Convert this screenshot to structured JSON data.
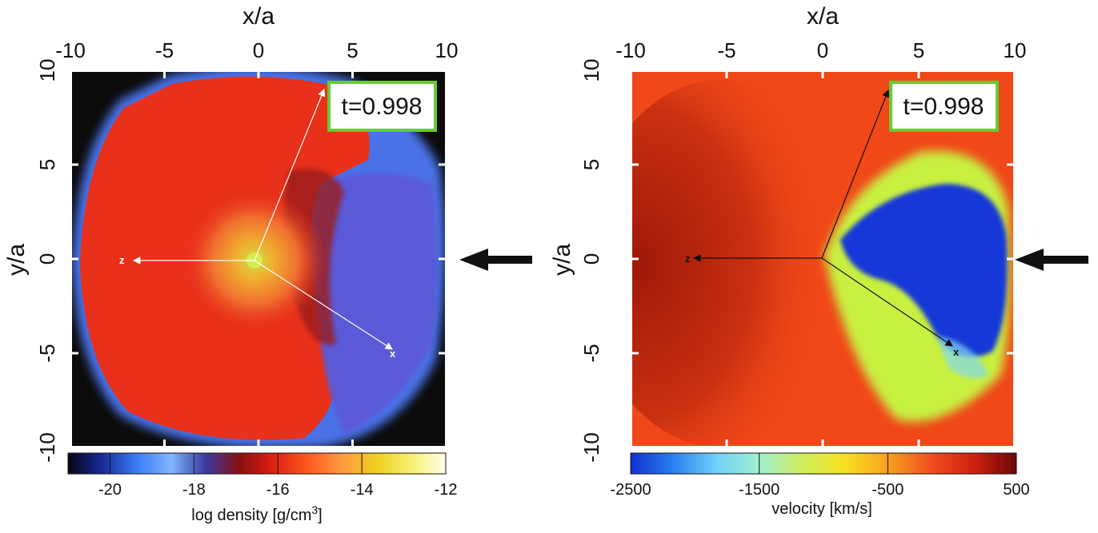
{
  "chart_data": [
    {
      "type": "heatmap",
      "panel": "left",
      "quantity": "log density",
      "title_top": "x/a",
      "ylabel": "y/a",
      "x_ticks": [
        -10,
        -5,
        0,
        5,
        10
      ],
      "y_ticks": [
        10,
        5,
        0,
        -5,
        -10
      ],
      "xlim": [
        -10,
        10
      ],
      "ylim": [
        -10,
        10
      ],
      "time_label": "t=0.998",
      "colorbar": {
        "label": "log density [g/cm",
        "label_sup": "3",
        "label_end": "]",
        "ticks": [
          -20,
          -18,
          -16,
          -14,
          -12
        ],
        "range": [
          -21,
          -12
        ],
        "stops": [
          "#050514",
          "#1a2a9a",
          "#3a7cf5",
          "#7fb6ff",
          "#3a3aa0",
          "#8a1010",
          "#e02010",
          "#ff5a20",
          "#ff9a40",
          "#f0d020",
          "#f8f070",
          "#ffffe8"
        ]
      },
      "vectors": [
        {
          "label": "z",
          "end": [
            -7,
            0
          ]
        },
        {
          "label": "x",
          "end": [
            7.3,
            -4.9
          ]
        },
        {
          "label": "",
          "end": [
            3.7,
            9.2
          ]
        }
      ],
      "colors": {
        "background": "#0b0b0b",
        "inner": "#e8301a",
        "rim": "#4a72e8",
        "lobe": "#5a5ad8",
        "core": "#f0b030"
      }
    },
    {
      "type": "heatmap",
      "panel": "right",
      "quantity": "velocity",
      "title_top": "x/a",
      "ylabel": "y/a",
      "x_ticks": [
        -10,
        -5,
        0,
        5,
        10
      ],
      "y_ticks": [
        10,
        5,
        0,
        -5,
        -10
      ],
      "xlim": [
        -10,
        10
      ],
      "ylim": [
        -10,
        10
      ],
      "time_label": "t=0.998",
      "colorbar": {
        "label": "velocity [km/s]",
        "ticks": [
          -2500,
          -1500,
          -500,
          500
        ],
        "range": [
          -2500,
          500
        ],
        "stops": [
          "#1030d0",
          "#2a80f0",
          "#70d0f8",
          "#a0f0d0",
          "#d0f060",
          "#f8e020",
          "#f8a020",
          "#f05020",
          "#d02010",
          "#6a0808"
        ]
      },
      "vectors": [
        {
          "label": "z",
          "end": [
            -7,
            0
          ]
        },
        {
          "label": "x",
          "end": [
            7.3,
            -4.9
          ]
        },
        {
          "label": "",
          "end": [
            3.7,
            9.2
          ]
        }
      ],
      "colors": {
        "background": "#f04818",
        "dark_region": "#b02010",
        "blue_blob": "#1838d8",
        "green_halo": "#c8f040"
      }
    }
  ],
  "arrows": [
    "left-arrow",
    "right-arrow"
  ]
}
